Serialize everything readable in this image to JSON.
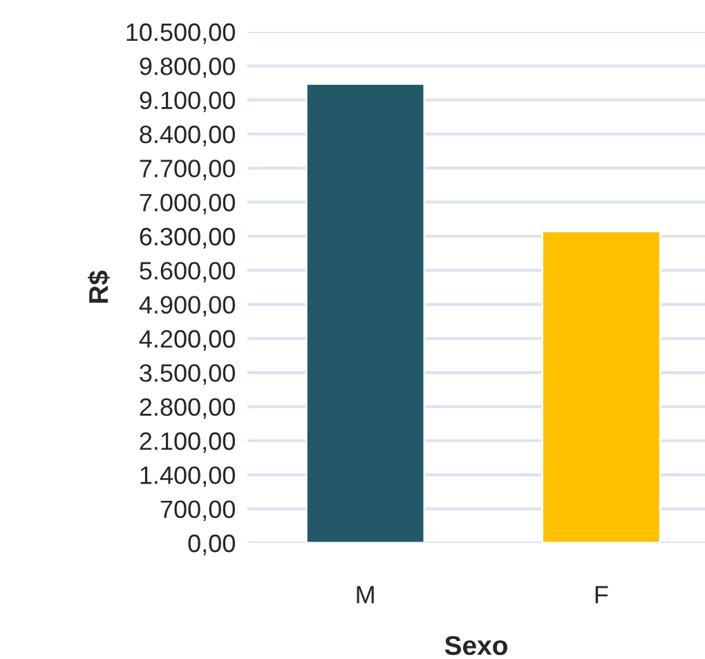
{
  "chart_data": {
    "type": "bar",
    "xlabel": "Sexo",
    "ylabel": "R$",
    "categories": [
      "M",
      "F"
    ],
    "values": [
      9430,
      6400
    ],
    "colors": [
      "#235868",
      "#ffc000"
    ],
    "ylim": [
      0,
      10500
    ],
    "yticks": [
      {
        "value": 0,
        "label": "0,00"
      },
      {
        "value": 700,
        "label": "700,00"
      },
      {
        "value": 1400,
        "label": "1.400,00"
      },
      {
        "value": 2100,
        "label": "2.100,00"
      },
      {
        "value": 2800,
        "label": "2.800,00"
      },
      {
        "value": 3500,
        "label": "3.500,00"
      },
      {
        "value": 4200,
        "label": "4.200,00"
      },
      {
        "value": 4900,
        "label": "4.900,00"
      },
      {
        "value": 5600,
        "label": "5.600,00"
      },
      {
        "value": 6300,
        "label": "6.300,00"
      },
      {
        "value": 7000,
        "label": "7.000,00"
      },
      {
        "value": 7700,
        "label": "7.700,00"
      },
      {
        "value": 8400,
        "label": "8.400,00"
      },
      {
        "value": 9100,
        "label": "9.100,00"
      },
      {
        "value": 9800,
        "label": "9.800,00"
      },
      {
        "value": 10500,
        "label": "10.500,00"
      }
    ],
    "grid": "y"
  }
}
